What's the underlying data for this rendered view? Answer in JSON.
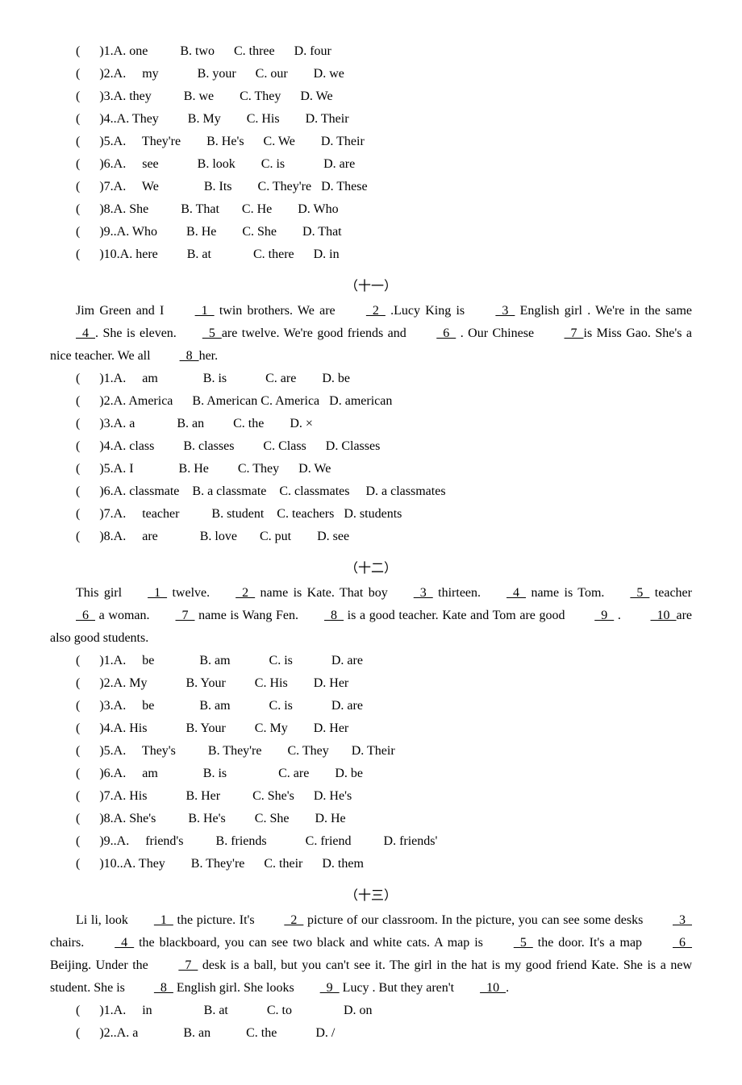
{
  "section10": {
    "questions": [
      {
        "n": "1",
        "a": "one",
        "b": "two",
        "c": "three",
        "d": "four",
        "sa": 0,
        "sb": 0,
        "sc": 0,
        "sd": 0,
        "ga": 10,
        "gb": 6,
        "gc": 6,
        "pre": ""
      },
      {
        "n": "2",
        "a": "my",
        "b": "your",
        "c": "our",
        "d": "we",
        "sa": 4,
        "sb": 0,
        "sc": 0,
        "sd": 0,
        "ga": 12,
        "gb": 6,
        "gc": 8,
        "pre": ""
      },
      {
        "n": "3",
        "a": "they",
        "b": "we",
        "c": "They",
        "d": "We",
        "sa": 0,
        "sb": 0,
        "sc": 0,
        "sd": 0,
        "ga": 10,
        "gb": 8,
        "gc": 6,
        "pre": ""
      },
      {
        "n": "4",
        "a": "They",
        "b": "My",
        "c": "His",
        "d": "Their",
        "sa": 0,
        "sb": 0,
        "sc": 0,
        "sd": 0,
        "ga": 9,
        "gb": 8,
        "gc": 8,
        "pre": "."
      },
      {
        "n": "5",
        "a": "They're",
        "b": "He's",
        "c": "We",
        "d": "Their",
        "sa": 4,
        "sb": 0,
        "sc": 0,
        "sd": 0,
        "ga": 8,
        "gb": 6,
        "gc": 8,
        "pre": ""
      },
      {
        "n": "6",
        "a": "see",
        "b": "look",
        "c": "is",
        "d": "are",
        "sa": 4,
        "sb": 0,
        "sc": 0,
        "sd": 0,
        "ga": 12,
        "gb": 8,
        "gc": 12,
        "pre": ""
      },
      {
        "n": "7",
        "a": "We",
        "b": "Its",
        "c": "They're",
        "d": "These",
        "sa": 4,
        "sb": 0,
        "sc": 0,
        "sd": 0,
        "ga": 14,
        "gb": 8,
        "gc": 3,
        "pre": ""
      },
      {
        "n": "8",
        "a": "She",
        "b": "That",
        "c": "He",
        "d": "Who",
        "sa": 0,
        "sb": 0,
        "sc": 0,
        "sd": 0,
        "ga": 10,
        "gb": 7,
        "gc": 8,
        "pre": ""
      },
      {
        "n": "9",
        "a": "Who",
        "b": "He",
        "c": "She",
        "d": "That",
        "sa": 0,
        "sb": 0,
        "sc": 0,
        "sd": 0,
        "ga": 9,
        "gb": 8,
        "gc": 8,
        "pre": "."
      },
      {
        "n": "10",
        "a": "here",
        "b": "at",
        "c": "there",
        "d": "in",
        "sa": 0,
        "sb": 0,
        "sc": 0,
        "sd": 0,
        "ga": 9,
        "gb": 13,
        "gc": 6,
        "pre": ""
      }
    ]
  },
  "section11": {
    "title": "（十一）",
    "passage_parts": [
      "Jim Green and I ",
      "  1  ",
      " twin brothers. We are ",
      "  2  ",
      " .Lucy King is ",
      "  3  ",
      " English girl . We're in the same",
      "  4  ",
      ". She is eleven.",
      "  5  ",
      "are twelve. We're good friends and ",
      "  6  ",
      " . Our Chinese ",
      "  7  ",
      "is Miss Gao. She's a nice teacher. We all ",
      "  8  ",
      "her."
    ],
    "questions": [
      {
        "n": "1",
        "a": "am",
        "b": "is",
        "c": "are",
        "d": "be",
        "sa": 4,
        "sb": 0,
        "sc": 0,
        "sd": 0,
        "ga": 14,
        "gb": 12,
        "gc": 8,
        "pre": ""
      },
      {
        "n": "2",
        "a": "America",
        "b": "American",
        "c": "America",
        "d": "american",
        "sa": 0,
        "sb": 0,
        "sc": 0,
        "sd": 0,
        "ga": 6,
        "gb": 1,
        "gc": 3,
        "pre": ""
      },
      {
        "n": "3",
        "a": "a",
        "b": "an",
        "c": "the",
        "d": "×",
        "sa": 0,
        "sb": 0,
        "sc": 0,
        "sd": 0,
        "ga": 13,
        "gb": 9,
        "gc": 8,
        "pre": ""
      },
      {
        "n": "4",
        "a": "class",
        "b": "classes",
        "c": "Class",
        "d": "Classes",
        "sa": 0,
        "sb": 0,
        "sc": 0,
        "sd": 0,
        "ga": 9,
        "gb": 9,
        "gc": 6,
        "pre": ""
      },
      {
        "n": "5",
        "a": "I",
        "b": "He",
        "c": "They",
        "d": "We",
        "sa": 0,
        "sb": 0,
        "sc": 0,
        "sd": 0,
        "ga": 14,
        "gb": 9,
        "gc": 6,
        "pre": ""
      },
      {
        "n": "6",
        "a": "classmate",
        "b": "a classmate",
        "c": "classmates",
        "d": "a classmates",
        "sa": 0,
        "sb": 0,
        "sc": 0,
        "sd": 0,
        "ga": 4,
        "gb": 4,
        "gc": 5,
        "pre": ""
      },
      {
        "n": "7",
        "a": "teacher",
        "b": "student",
        "c": "teachers",
        "d": "students",
        "sa": 4,
        "sb": 0,
        "sc": 0,
        "sd": 0,
        "ga": 10,
        "gb": 4,
        "gc": 3,
        "pre": ""
      },
      {
        "n": "8",
        "a": "are",
        "b": "love",
        "c": "put",
        "d": "see",
        "sa": 4,
        "sb": 0,
        "sc": 0,
        "sd": 0,
        "ga": 13,
        "gb": 7,
        "gc": 8,
        "pre": ""
      }
    ]
  },
  "section12": {
    "title": "（十二）",
    "passage_parts": [
      "This girl",
      "  1  ",
      " twelve.",
      "  2  ",
      " name is Kate. That boy",
      "  3  ",
      " thirteen.",
      "  4  ",
      " name is Tom.",
      "  5  ",
      " teacher",
      "  6  ",
      " a woman.",
      "  7  ",
      " name is Wang Fen.",
      "  8  ",
      " is a good teacher. Kate and Tom are good ",
      "  9  ",
      " . ",
      "  10  ",
      "are also good students."
    ],
    "questions": [
      {
        "n": "1",
        "a": "be",
        "b": "am",
        "c": "is",
        "d": "are",
        "sa": 4,
        "sb": 0,
        "sc": 0,
        "sd": 0,
        "ga": 14,
        "gb": 12,
        "gc": 12,
        "pre": ""
      },
      {
        "n": "2",
        "a": "My",
        "b": "Your",
        "c": "His",
        "d": "Her",
        "sa": 0,
        "sb": 0,
        "sc": 0,
        "sd": 0,
        "ga": 12,
        "gb": 9,
        "gc": 8,
        "pre": ""
      },
      {
        "n": "3",
        "a": "be",
        "b": "am",
        "c": "is",
        "d": "are",
        "sa": 4,
        "sb": 0,
        "sc": 0,
        "sd": 0,
        "ga": 14,
        "gb": 12,
        "gc": 12,
        "pre": ""
      },
      {
        "n": "4",
        "a": "His",
        "b": "Your",
        "c": "My",
        "d": "Her",
        "sa": 0,
        "sb": 0,
        "sc": 0,
        "sd": 0,
        "ga": 12,
        "gb": 9,
        "gc": 8,
        "pre": ""
      },
      {
        "n": "5",
        "a": "They's",
        "b": "They're",
        "c": "They",
        "d": "Their",
        "sa": 4,
        "sb": 0,
        "sc": 0,
        "sd": 0,
        "ga": 10,
        "gb": 8,
        "gc": 7,
        "pre": ""
      },
      {
        "n": "6",
        "a": "am",
        "b": "is",
        "c": "are",
        "d": "be",
        "sa": 4,
        "sb": 0,
        "sc": 0,
        "sd": 0,
        "ga": 14,
        "gb": 16,
        "gc": 8,
        "pre": ""
      },
      {
        "n": "7",
        "a": "His",
        "b": "Her",
        "c": "She's",
        "d": "He's",
        "sa": 0,
        "sb": 0,
        "sc": 0,
        "sd": 0,
        "ga": 12,
        "gb": 10,
        "gc": 6,
        "pre": ""
      },
      {
        "n": "8",
        "a": "She's",
        "b": "He's",
        "c": "She",
        "d": "He",
        "sa": 0,
        "sb": 0,
        "sc": 0,
        "sd": 0,
        "ga": 10,
        "gb": 9,
        "gc": 8,
        "pre": ""
      },
      {
        "n": "9",
        "a": "friend's",
        "b": "friends",
        "c": "friend",
        "d": "friends'",
        "sa": 4,
        "sb": 0,
        "sc": 0,
        "sd": 0,
        "ga": 10,
        "gb": 12,
        "gc": 10,
        "pre": "."
      },
      {
        "n": "10",
        "a": "They",
        "b": "They're",
        "c": "their",
        "d": "them",
        "sa": 0,
        "sb": 0,
        "sc": 0,
        "sd": 0,
        "ga": 8,
        "gb": 6,
        "gc": 6,
        "pre": "."
      }
    ]
  },
  "section13": {
    "title": "（十三）",
    "passage_parts": [
      "Li li, look",
      "  1  ",
      " the picture. It's ",
      "  2  ",
      " picture of our classroom. In the picture, you can see some desks ",
      "  3  ",
      " chairs. ",
      "  4  ",
      " the blackboard, you can see two black and white cats. A map is ",
      "  5  ",
      " the door. It's a map ",
      "  6  ",
      " Beijing. Under the ",
      "  7  ",
      " desk is a ball, but you can't see it. The girl in the hat is my good friend Kate. She is a new student. She is ",
      "  8  ",
      " English girl. She looks",
      "  9  ",
      " Lucy . But they aren't",
      "  10  ",
      "."
    ],
    "questions": [
      {
        "n": "1",
        "a": "in",
        "b": "at",
        "c": "to",
        "d": "on",
        "sa": 4,
        "sb": 0,
        "sc": 0,
        "sd": 0,
        "ga": 16,
        "gb": 12,
        "gc": 16,
        "pre": ""
      },
      {
        "n": "2",
        "a": "a",
        "b": "an",
        "c": "the",
        "d": "/",
        "sa": 0,
        "sb": 0,
        "sc": 0,
        "sd": 0,
        "ga": 14,
        "gb": 11,
        "gc": 12,
        "pre": "."
      }
    ]
  }
}
